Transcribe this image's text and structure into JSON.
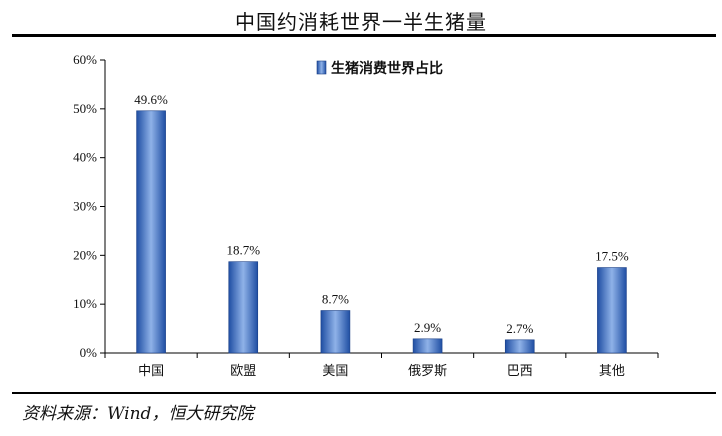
{
  "header": {
    "title": "中国约消耗世界一半生猪量"
  },
  "footer": {
    "source": "资料来源：Wind，恒大研究院"
  },
  "colors": {
    "bar_dark": "#1f4ea3",
    "bar_light": "#8fb2e8"
  },
  "chart_data": {
    "type": "bar",
    "categories": [
      "中国",
      "欧盟",
      "美国",
      "俄罗斯",
      "巴西",
      "其他"
    ],
    "series": [
      {
        "name": "生猪消费世界占比",
        "values": [
          49.6,
          18.7,
          8.7,
          2.9,
          2.7,
          17.5
        ]
      }
    ],
    "data_labels": [
      "49.6%",
      "18.7%",
      "8.7%",
      "2.9%",
      "2.7%",
      "17.5%"
    ],
    "y_ticks": [
      "0%",
      "10%",
      "20%",
      "30%",
      "40%",
      "50%",
      "60%"
    ],
    "ylim": [
      0,
      60
    ],
    "legend_position": "top",
    "grid": false
  }
}
